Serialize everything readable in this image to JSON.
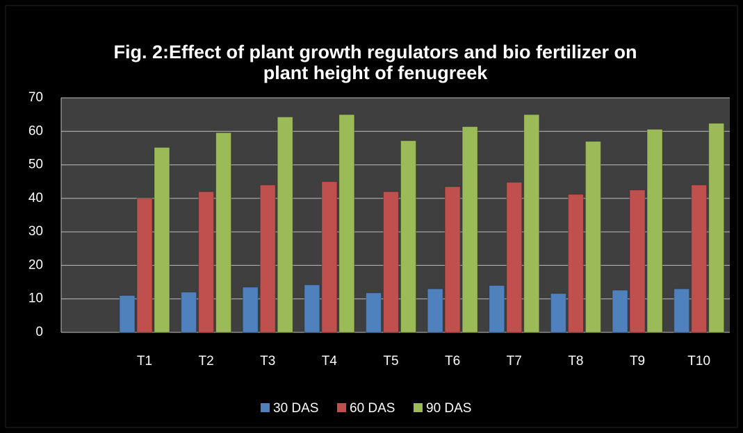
{
  "chart_data": {
    "type": "bar",
    "title": [
      "Fig. 2:Effect of plant growth regulators and bio fertilizer on",
      "plant height  of fenugreek"
    ],
    "categories": [
      null,
      "T1",
      "T2",
      "T3",
      "T4",
      "T5",
      "T6",
      "T7",
      "T8",
      "T9",
      "T10"
    ],
    "series": [
      {
        "name": "30 DAS",
        "color": "#4f81bd",
        "values": [
          null,
          11,
          12,
          13.5,
          14.2,
          11.8,
          13,
          14,
          11.6,
          12.6,
          13
        ]
      },
      {
        "name": "60 DAS",
        "color": "#c0504d",
        "values": [
          null,
          40,
          42,
          44,
          45,
          42,
          43.5,
          44.8,
          41.2,
          42.5,
          44
        ]
      },
      {
        "name": "90 DAS",
        "color": "#9bbb59",
        "values": [
          null,
          55.2,
          59.6,
          64.3,
          65,
          57.2,
          61.4,
          65,
          57,
          60.6,
          62.4
        ]
      }
    ],
    "ylim": [
      0,
      70
    ],
    "yticks": [
      0,
      10,
      20,
      30,
      40,
      50,
      60,
      70
    ],
    "grid": true,
    "legend": "bottom"
  }
}
